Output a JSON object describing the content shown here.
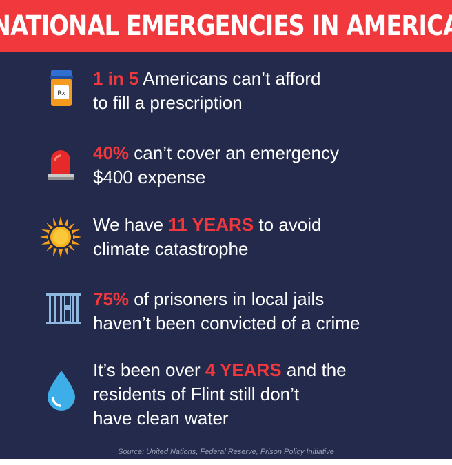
{
  "title": "NATIONAL EMERGENCIES IN AMERICA",
  "colors": {
    "background": "#232a4b",
    "accent": "#f0383d",
    "text": "#ffffff"
  },
  "items": [
    {
      "icon": "pill-bottle-icon",
      "highlight": "1 in 5",
      "line1_rest": " Americans can’t afford",
      "line2": "to fill a prescription",
      "rx": "Rx"
    },
    {
      "icon": "siren-icon",
      "highlight": "40%",
      "line1_rest": " can’t cover an emergency",
      "line2": "$400 expense"
    },
    {
      "icon": "sun-icon",
      "line1_pre": "We have ",
      "highlight": "11 YEARS",
      "line1_rest": " to avoid",
      "line2": "climate catastrophe"
    },
    {
      "icon": "jail-bars-icon",
      "highlight": "75%",
      "line1_rest": " of prisoners in local jails",
      "line2": "haven’t been convicted of a crime"
    },
    {
      "icon": "water-drop-icon",
      "line1_pre": "It’s been over ",
      "highlight": "4 YEARS",
      "line1_rest": " and the",
      "line2": "residents of Flint still don’t",
      "line3": "have clean water"
    }
  ],
  "source": "Source: United Nations, Federal Reserve, Prison Policy Initiative"
}
